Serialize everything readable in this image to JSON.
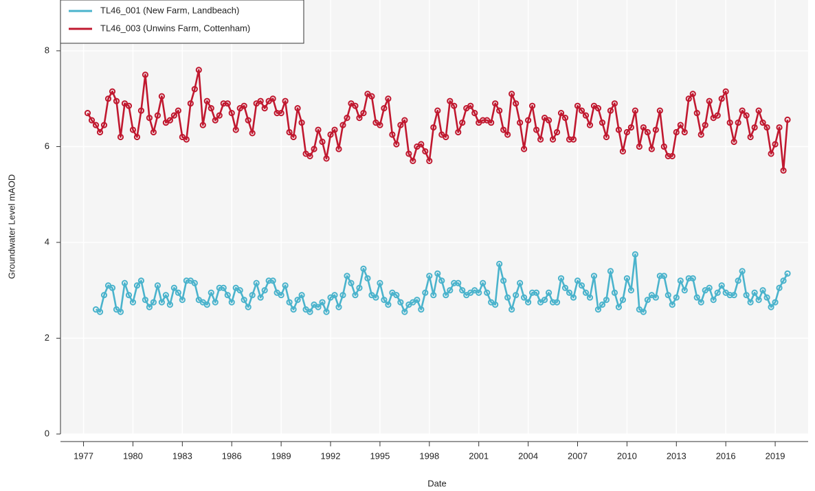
{
  "chart_data": {
    "type": "line",
    "x_label": "Date",
    "y_label": "Groundwater Level mAOD",
    "x": [
      1977.25,
      1977.5,
      1977.75,
      1978,
      1978.25,
      1978.5,
      1978.75,
      1979,
      1979.25,
      1979.5,
      1979.75,
      1980,
      1980.25,
      1980.5,
      1980.75,
      1981,
      1981.25,
      1981.5,
      1981.75,
      1982,
      1982.25,
      1982.5,
      1982.75,
      1983,
      1983.25,
      1983.5,
      1983.75,
      1984,
      1984.25,
      1984.5,
      1984.75,
      1985,
      1985.25,
      1985.5,
      1985.75,
      1986,
      1986.25,
      1986.5,
      1986.75,
      1987,
      1987.25,
      1987.5,
      1987.75,
      1988,
      1988.25,
      1988.5,
      1988.75,
      1989,
      1989.25,
      1989.5,
      1989.75,
      1990,
      1990.25,
      1990.5,
      1990.75,
      1991,
      1991.25,
      1991.5,
      1991.75,
      1992,
      1992.25,
      1992.5,
      1992.75,
      1993,
      1993.25,
      1993.5,
      1993.75,
      1994,
      1994.25,
      1994.5,
      1994.75,
      1995,
      1995.25,
      1995.5,
      1995.75,
      1996,
      1996.25,
      1996.5,
      1996.75,
      1997,
      1997.25,
      1997.5,
      1997.75,
      1998,
      1998.25,
      1998.5,
      1998.75,
      1999,
      1999.25,
      1999.5,
      1999.75,
      2000,
      2000.25,
      2000.5,
      2000.75,
      2001,
      2001.25,
      2001.5,
      2001.75,
      2002,
      2002.25,
      2002.5,
      2002.75,
      2003,
      2003.25,
      2003.5,
      2003.75,
      2004,
      2004.25,
      2004.5,
      2004.75,
      2005,
      2005.25,
      2005.5,
      2005.75,
      2006,
      2006.25,
      2006.5,
      2006.75,
      2007,
      2007.25,
      2007.5,
      2007.75,
      2008,
      2008.25,
      2008.5,
      2008.75,
      2009,
      2009.25,
      2009.5,
      2009.75,
      2010,
      2010.25,
      2010.5,
      2010.75,
      2011,
      2011.25,
      2011.5,
      2011.75,
      2012,
      2012.25,
      2012.5,
      2012.75,
      2013,
      2013.25,
      2013.5,
      2013.75,
      2014,
      2014.25,
      2014.5,
      2014.75,
      2015,
      2015.25,
      2015.5,
      2015.75,
      2016,
      2016.25,
      2016.5,
      2016.75,
      2017,
      2017.25,
      2017.5,
      2017.75,
      2018,
      2018.25,
      2018.5,
      2018.75,
      2019,
      2019.25,
      2019.5,
      2019.75
    ],
    "series": [
      {
        "name": "TL46_001 (New Farm, Landbeach)",
        "color": "#4ab3cc",
        "values": [
          null,
          null,
          2.6,
          2.55,
          2.9,
          3.1,
          3.05,
          2.6,
          2.55,
          3.15,
          2.9,
          2.75,
          3.1,
          3.2,
          2.8,
          2.65,
          2.75,
          3.1,
          2.75,
          2.9,
          2.7,
          3.05,
          2.95,
          2.8,
          3.2,
          3.2,
          3.15,
          2.8,
          2.75,
          2.7,
          2.95,
          2.75,
          3.05,
          3.05,
          2.9,
          2.75,
          3.05,
          3.0,
          2.8,
          2.65,
          2.9,
          3.15,
          2.85,
          3.0,
          3.2,
          3.2,
          2.95,
          2.9,
          3.1,
          2.75,
          2.6,
          2.8,
          2.9,
          2.6,
          2.55,
          2.7,
          2.65,
          2.75,
          2.55,
          2.85,
          2.9,
          2.65,
          2.9,
          3.3,
          3.15,
          2.9,
          3.05,
          3.45,
          3.25,
          2.9,
          2.85,
          3.15,
          2.8,
          2.7,
          2.95,
          2.9,
          2.75,
          2.55,
          2.7,
          2.75,
          2.8,
          2.6,
          2.95,
          3.3,
          2.9,
          3.35,
          3.2,
          2.9,
          3.0,
          3.15,
          3.15,
          3.0,
          2.9,
          2.95,
          3.0,
          2.95,
          3.15,
          2.95,
          2.75,
          2.7,
          3.55,
          3.2,
          2.85,
          2.6,
          2.9,
          3.15,
          2.85,
          2.75,
          2.95,
          2.95,
          2.75,
          2.8,
          2.95,
          2.75,
          2.75,
          3.25,
          3.05,
          2.95,
          2.85,
          3.2,
          3.1,
          2.95,
          2.85,
          3.3,
          2.6,
          2.7,
          2.8,
          3.4,
          2.95,
          2.65,
          2.8,
          3.25,
          3.0,
          3.75,
          2.6,
          2.55,
          2.8,
          2.9,
          2.85,
          3.3,
          3.3,
          2.9,
          2.7,
          2.85,
          3.2,
          3.0,
          3.25,
          3.25,
          2.85,
          2.75,
          3.0,
          3.05,
          2.8,
          2.95,
          3.1,
          2.95,
          2.9,
          2.9,
          3.2,
          3.4,
          2.9,
          2.75,
          2.95,
          2.8,
          3.0,
          2.85,
          2.65,
          2.75,
          3.05,
          3.2,
          3.35
        ]
      },
      {
        "name": "TL46_003 (Unwins Farm, Cottenham)",
        "color": "#c0182f",
        "values": [
          6.7,
          6.55,
          6.45,
          6.3,
          6.45,
          7.0,
          7.15,
          6.95,
          6.2,
          6.9,
          6.85,
          6.35,
          6.2,
          6.75,
          7.5,
          6.6,
          6.3,
          6.65,
          7.05,
          6.5,
          6.55,
          6.65,
          6.75,
          6.2,
          6.15,
          6.9,
          7.2,
          7.6,
          6.45,
          6.95,
          6.8,
          6.55,
          6.65,
          6.9,
          6.9,
          6.7,
          6.35,
          6.8,
          6.85,
          6.55,
          6.28,
          6.9,
          6.95,
          6.8,
          6.95,
          7.0,
          6.7,
          6.7,
          6.95,
          6.3,
          6.2,
          6.8,
          6.5,
          5.85,
          5.8,
          5.95,
          6.35,
          6.1,
          5.75,
          6.25,
          6.35,
          5.95,
          6.45,
          6.6,
          6.9,
          6.85,
          6.6,
          6.7,
          7.1,
          7.05,
          6.5,
          6.45,
          6.8,
          7.0,
          6.25,
          6.05,
          6.45,
          6.55,
          5.85,
          5.7,
          6.0,
          6.05,
          5.9,
          5.7,
          6.4,
          6.75,
          6.25,
          6.2,
          6.95,
          6.85,
          6.3,
          6.5,
          6.8,
          6.85,
          6.7,
          6.5,
          6.55,
          6.55,
          6.5,
          6.9,
          6.75,
          6.35,
          6.25,
          7.1,
          6.9,
          6.5,
          5.95,
          6.55,
          6.85,
          6.35,
          6.15,
          6.6,
          6.55,
          6.15,
          6.3,
          6.7,
          6.6,
          6.15,
          6.15,
          6.85,
          6.75,
          6.65,
          6.45,
          6.85,
          6.8,
          6.5,
          6.2,
          6.75,
          6.9,
          6.35,
          5.9,
          6.3,
          6.4,
          6.75,
          6.0,
          6.4,
          6.3,
          5.95,
          6.35,
          6.75,
          6.0,
          5.8,
          5.8,
          6.3,
          6.45,
          6.3,
          7.0,
          7.1,
          6.7,
          6.25,
          6.45,
          6.95,
          6.6,
          6.65,
          7.0,
          7.15,
          6.5,
          6.1,
          6.5,
          6.75,
          6.65,
          6.2,
          6.4,
          6.75,
          6.5,
          6.4,
          5.85,
          6.05,
          6.4,
          5.5,
          6.56
        ]
      }
    ],
    "xlim": [
      1975.6,
      2021.0
    ],
    "xticks": [
      1977,
      1980,
      1983,
      1986,
      1989,
      1992,
      1995,
      1998,
      2001,
      2004,
      2007,
      2010,
      2013,
      2016,
      2019
    ],
    "ylim": [
      0,
      9.06
    ],
    "yticks": [
      0,
      2,
      4,
      6,
      8
    ],
    "grid": true,
    "legend": "top-left"
  }
}
